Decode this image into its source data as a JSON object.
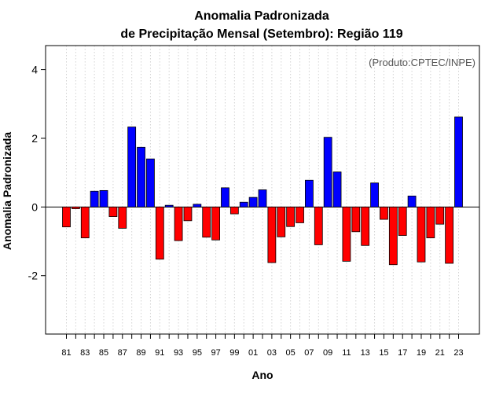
{
  "chart_data": {
    "type": "bar",
    "title_line1": "Anomalia Padronizada",
    "title_line2": "de Precipitação Mensal (Setembro): Região 119",
    "xlabel": "Ano",
    "ylabel": "Anomalia Padronizada",
    "credit": "(Produto:CPTEC/INPE)",
    "ylim": [
      -3.7,
      4.7
    ],
    "yticks": [
      -2,
      0,
      2,
      4
    ],
    "ytick_labels": [
      "-2",
      "0",
      "2",
      "4"
    ],
    "grid": "vertical dotted",
    "categories": [
      "81",
      "82",
      "83",
      "84",
      "85",
      "86",
      "87",
      "88",
      "89",
      "90",
      "91",
      "92",
      "93",
      "94",
      "95",
      "96",
      "97",
      "98",
      "99",
      "00",
      "01",
      "02",
      "03",
      "04",
      "05",
      "06",
      "07",
      "08",
      "09",
      "10",
      "11",
      "12",
      "13",
      "14",
      "15",
      "16",
      "17",
      "18",
      "19",
      "20",
      "21",
      "22",
      "23"
    ],
    "xtick_labels": [
      "81",
      "83",
      "85",
      "87",
      "89",
      "91",
      "93",
      "95",
      "97",
      "99",
      "01",
      "03",
      "05",
      "07",
      "09",
      "11",
      "13",
      "15",
      "17",
      "19",
      "21",
      "23"
    ],
    "values": [
      -0.58,
      -0.05,
      -0.9,
      0.46,
      0.48,
      -0.28,
      -0.62,
      2.33,
      1.74,
      1.4,
      -1.52,
      0.05,
      -0.98,
      -0.4,
      0.08,
      -0.88,
      -0.96,
      0.56,
      -0.2,
      0.14,
      0.28,
      0.5,
      -1.62,
      -0.87,
      -0.57,
      -0.46,
      0.78,
      -1.1,
      2.03,
      1.02,
      -1.58,
      -0.72,
      -1.12,
      0.7,
      -0.36,
      -1.68,
      -0.83,
      0.32,
      -1.6,
      -0.9,
      -0.5,
      -1.64,
      2.62
    ],
    "colors": {
      "positive": "#0000ff",
      "negative": "#ff0000",
      "outline": "#000000",
      "zero_line": "#000000"
    }
  }
}
